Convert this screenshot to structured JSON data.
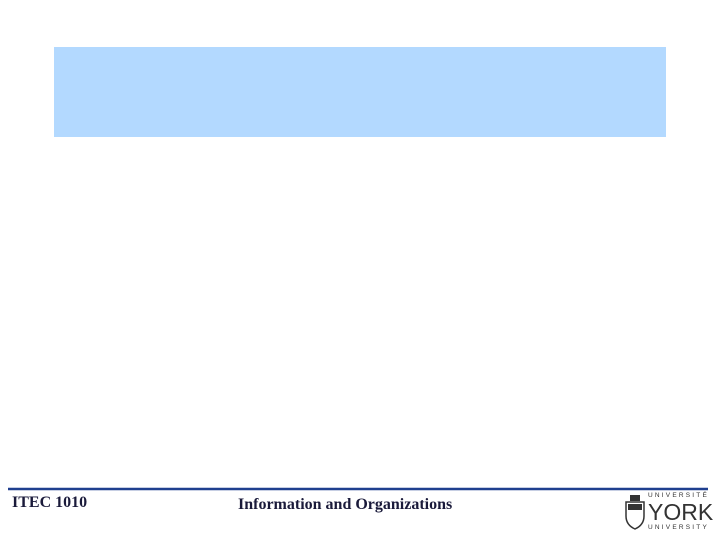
{
  "footer": {
    "course": "ITEC 1010",
    "title": "Information and Organizations"
  },
  "logo": {
    "top": "UNIVERSITÉ",
    "name": "YORK",
    "bottom": "UNIVERSITY"
  }
}
